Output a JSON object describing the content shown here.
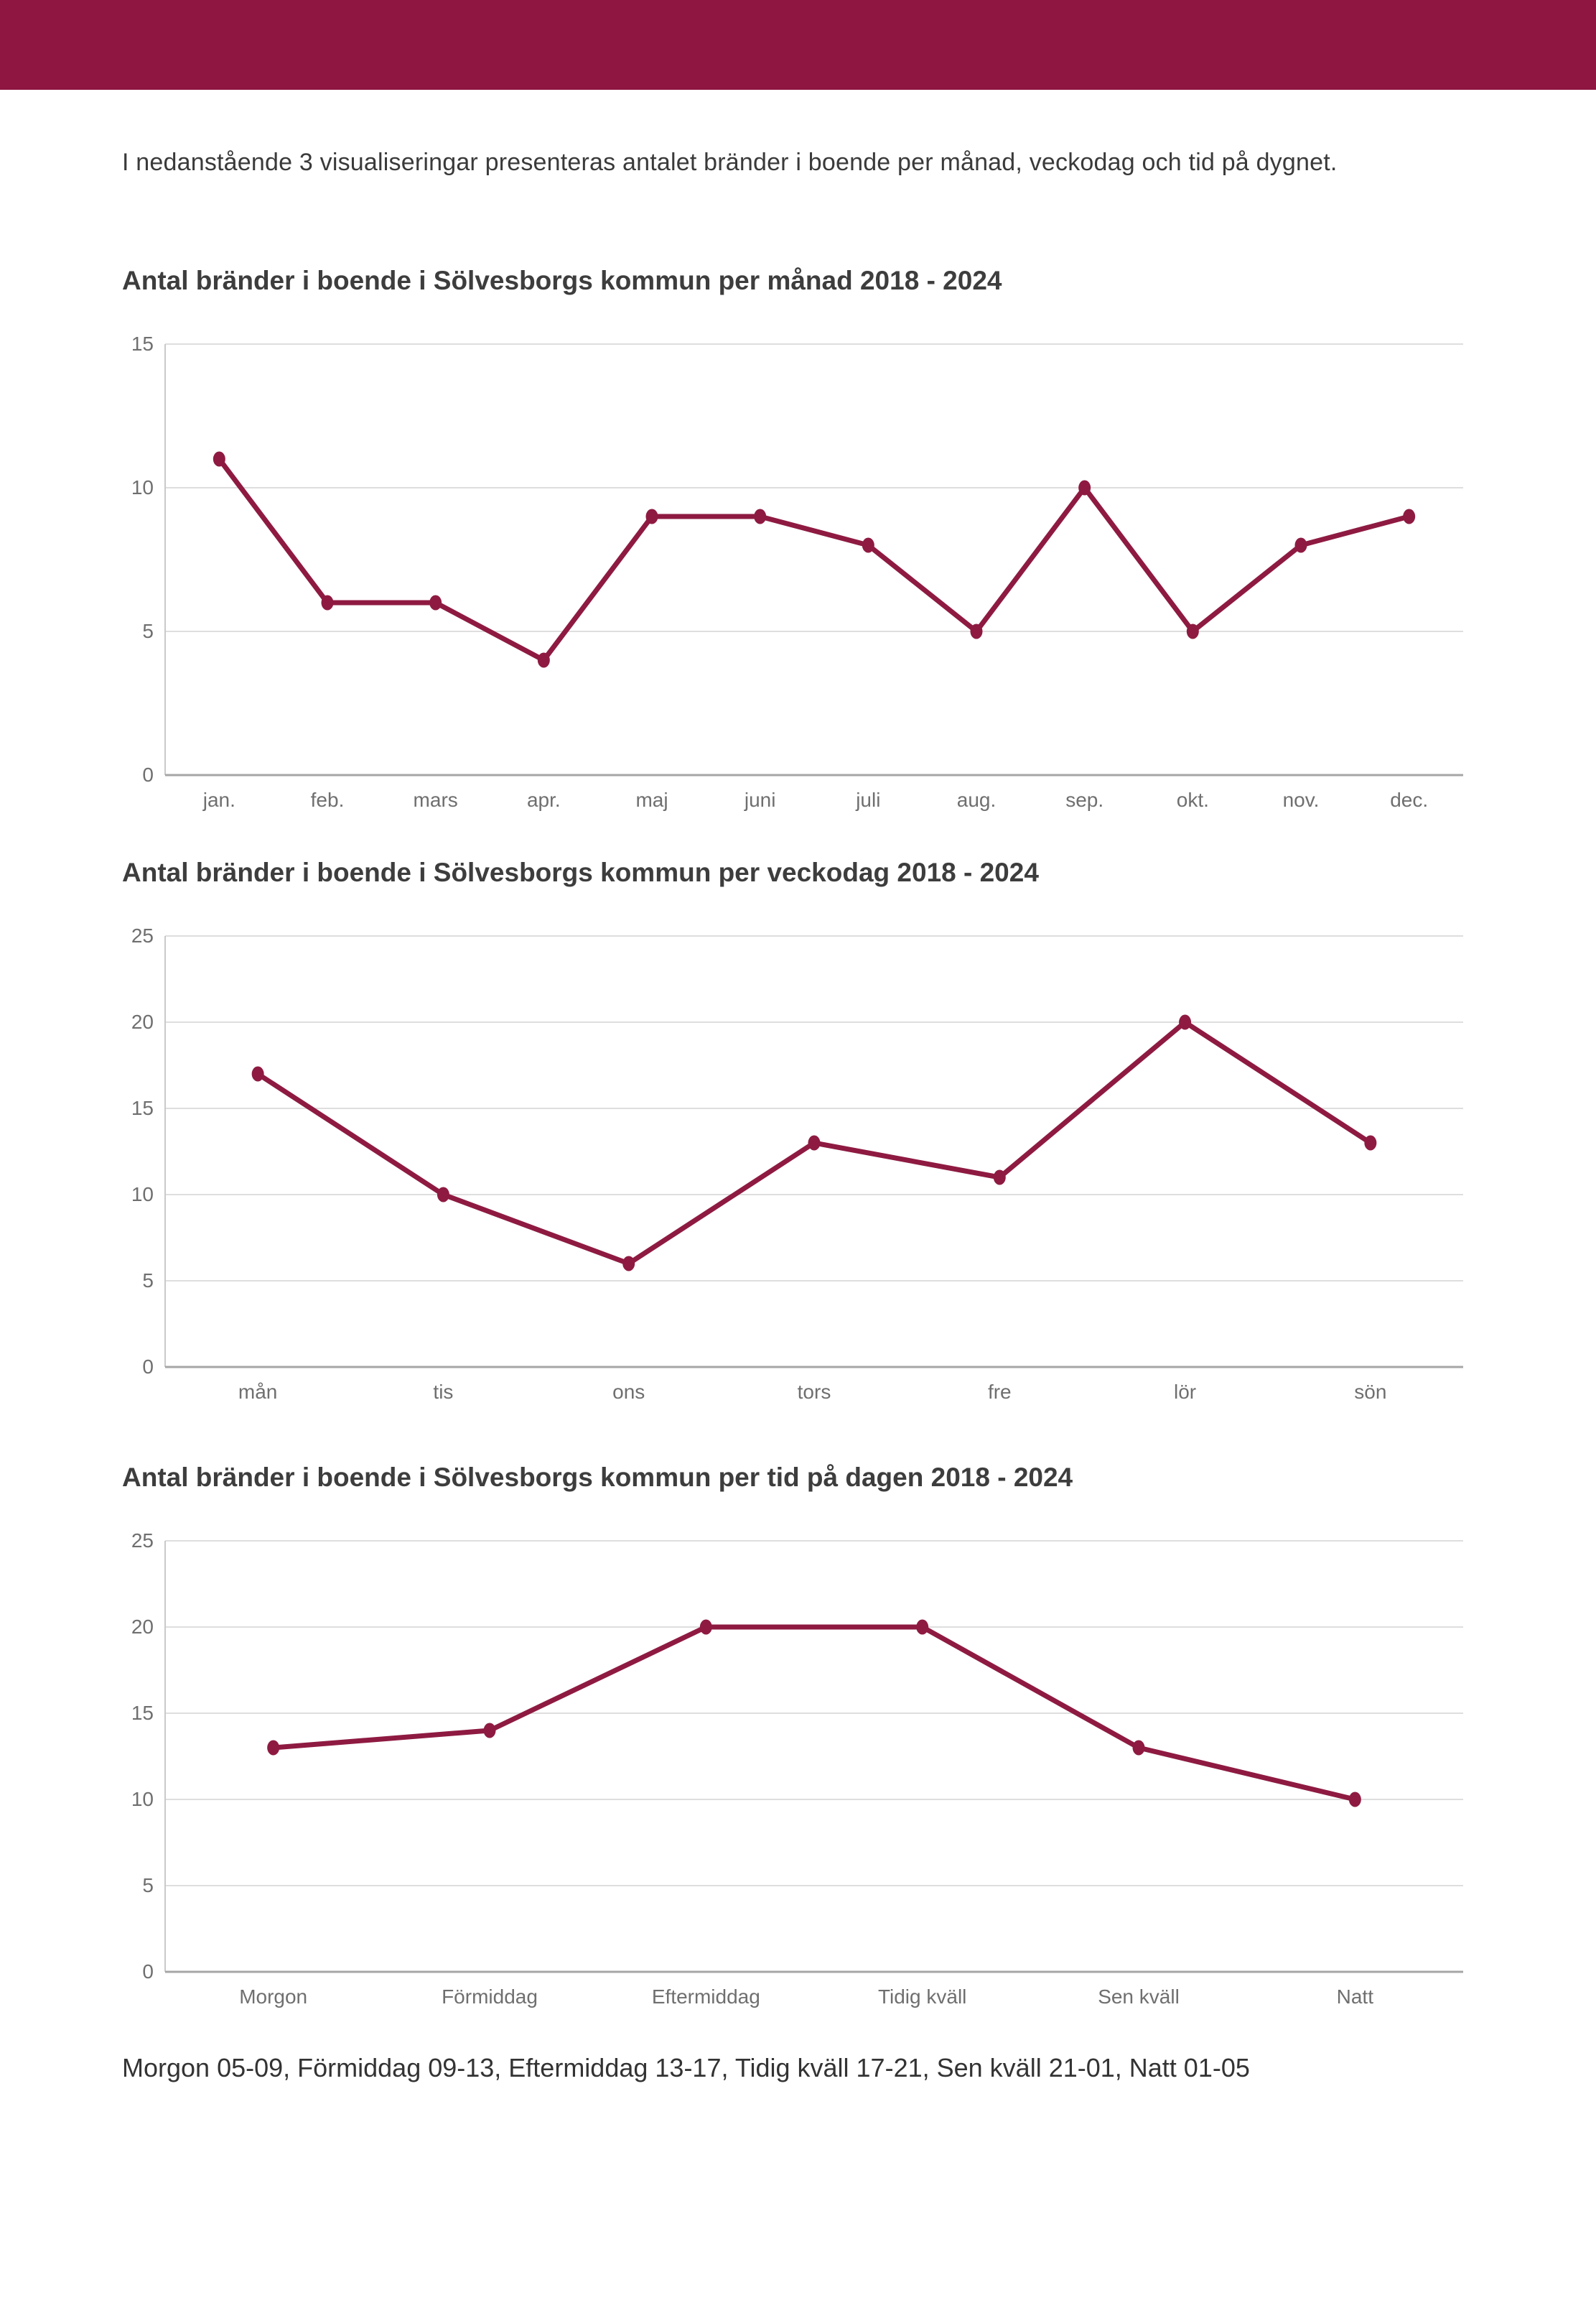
{
  "page": {
    "header_color": "#8E1640",
    "accent_color": "#8E1A42",
    "intro": "I nedanstående 3 visualiseringar presenteras antalet bränder i boende per månad, veckodag och tid på dygnet.",
    "footer": "Morgon 05-09, Förmiddag 09-13, Eftermiddag 13-17, Tidig kväll 17-21, Sen kväll 21-01, Natt 01-05"
  },
  "chart_data": [
    {
      "type": "line",
      "title": "Antal bränder i boende i Sölvesborgs kommun per månad 2018 - 2024",
      "categories": [
        "jan.",
        "feb.",
        "mars",
        "apr.",
        "maj",
        "juni",
        "juli",
        "aug.",
        "sep.",
        "okt.",
        "nov.",
        "dec."
      ],
      "values": [
        11,
        6,
        6,
        4,
        9,
        9,
        8,
        5,
        10,
        5,
        8,
        9
      ],
      "xlabel": "",
      "ylabel": "",
      "ylim": [
        0,
        15
      ],
      "yticks": [
        0,
        5,
        10,
        15
      ],
      "grid": true,
      "legend": "none",
      "line_color": "#8E1A42"
    },
    {
      "type": "line",
      "title": "Antal bränder i boende i Sölvesborgs kommun per veckodag 2018 - 2024",
      "categories": [
        "mån",
        "tis",
        "ons",
        "tors",
        "fre",
        "lör",
        "sön"
      ],
      "values": [
        17,
        10,
        6,
        13,
        11,
        20,
        13
      ],
      "xlabel": "",
      "ylabel": "",
      "ylim": [
        0,
        25
      ],
      "yticks": [
        0,
        5,
        10,
        15,
        20,
        25
      ],
      "grid": true,
      "legend": "none",
      "line_color": "#8E1A42"
    },
    {
      "type": "line",
      "title": "Antal bränder i boende i Sölvesborgs kommun per tid på dagen 2018 - 2024",
      "categories": [
        "Morgon",
        "Förmiddag",
        "Eftermiddag",
        "Tidig kväll",
        "Sen kväll",
        "Natt"
      ],
      "values": [
        13,
        14,
        20,
        20,
        13,
        10
      ],
      "xlabel": "",
      "ylabel": "",
      "ylim": [
        0,
        25
      ],
      "yticks": [
        0,
        5,
        10,
        15,
        20,
        25
      ],
      "grid": true,
      "legend": "none",
      "line_color": "#8E1A42"
    }
  ]
}
